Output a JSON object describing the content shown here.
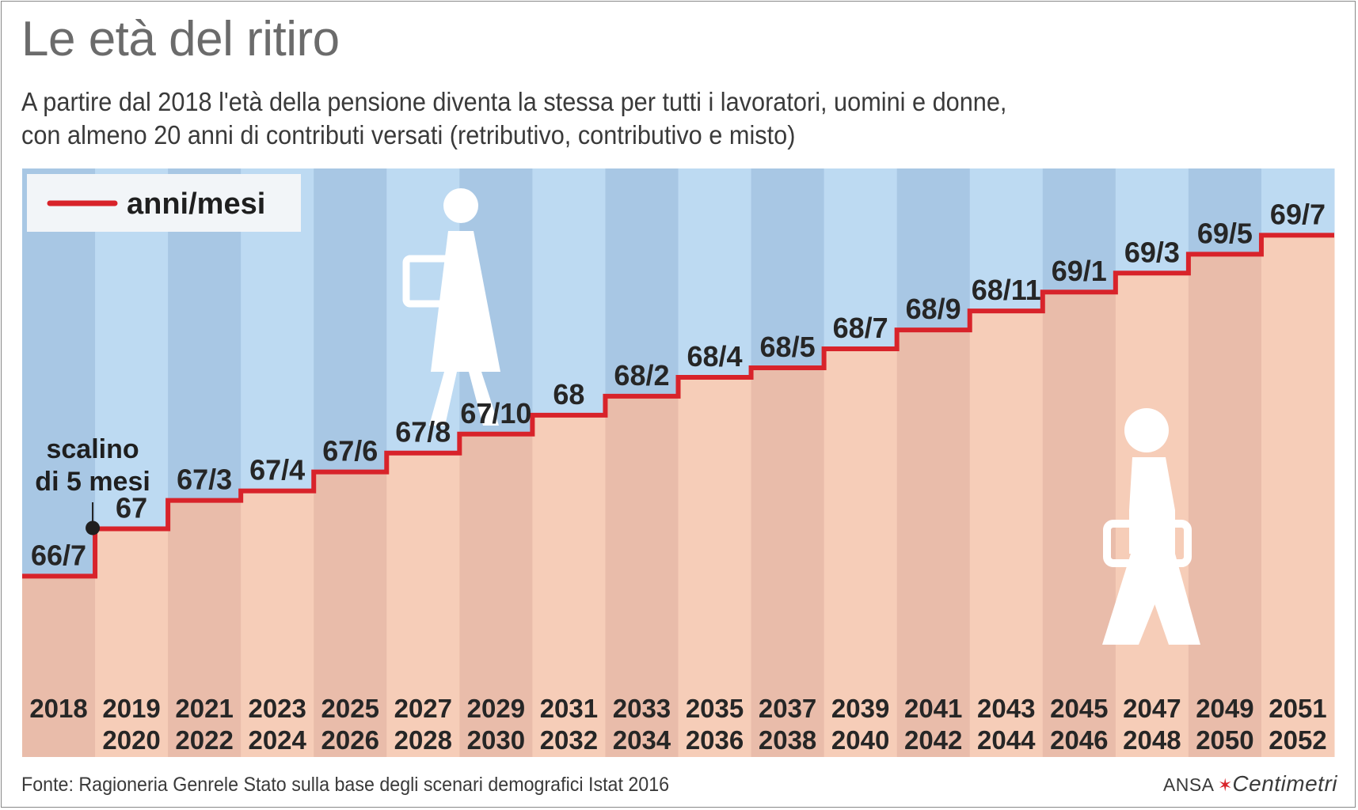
{
  "title": "Le età del ritiro",
  "subtitle_line1": "A partire dal 2018 l'età della pensione diventa la stessa per tutti i lavoratori, uomini e donne,",
  "subtitle_line2": "con almeno 20 anni di contributi versati (retributivo, contributivo e misto)",
  "source": "Fonte: Ragioneria Genrele Stato sulla base degli scenari demografici Istat 2016",
  "brand": {
    "ansa": "ANSA",
    "mark": "✶",
    "logo": "Centimetri"
  },
  "icons": [
    "woman-figure-icon",
    "man-figure-icon"
  ],
  "colors": {
    "line": "#d8232a",
    "sky_dark": "#a8c7e4",
    "sky_light": "#bddaf2",
    "sand_dark": "#e9bcaa",
    "sand_light": "#f6cdb8"
  },
  "chart_data": {
    "type": "line",
    "style": "step",
    "legend": {
      "label": "anni/mesi",
      "position": "top-left"
    },
    "annotation": {
      "line1": "scalino",
      "line2": "di 5 mesi",
      "at_category": 1
    },
    "categories": [
      [
        "2018",
        ""
      ],
      [
        "2019",
        "2020"
      ],
      [
        "2021",
        "2022"
      ],
      [
        "2023",
        "2024"
      ],
      [
        "2025",
        "2026"
      ],
      [
        "2027",
        "2028"
      ],
      [
        "2029",
        "2030"
      ],
      [
        "2031",
        "2032"
      ],
      [
        "2033",
        "2034"
      ],
      [
        "2035",
        "2036"
      ],
      [
        "2037",
        "2038"
      ],
      [
        "2039",
        "2040"
      ],
      [
        "2041",
        "2042"
      ],
      [
        "2043",
        "2044"
      ],
      [
        "2045",
        "2046"
      ],
      [
        "2047",
        "2048"
      ],
      [
        "2049",
        "2050"
      ],
      [
        "2051",
        "2052"
      ]
    ],
    "series": [
      {
        "name": "anni/mesi",
        "labels": [
          "66/7",
          "67",
          "67/3",
          "67/4",
          "67/6",
          "67/8",
          "67/10",
          "68",
          "68/2",
          "68/4",
          "68/5",
          "68/7",
          "68/9",
          "68/11",
          "69/1",
          "69/3",
          "69/5",
          "69/7"
        ],
        "values_months": [
          799,
          804,
          807,
          808,
          810,
          812,
          814,
          816,
          818,
          820,
          821,
          823,
          825,
          827,
          829,
          831,
          833,
          835
        ]
      }
    ],
    "ylim_months": [
      788,
      850
    ]
  }
}
